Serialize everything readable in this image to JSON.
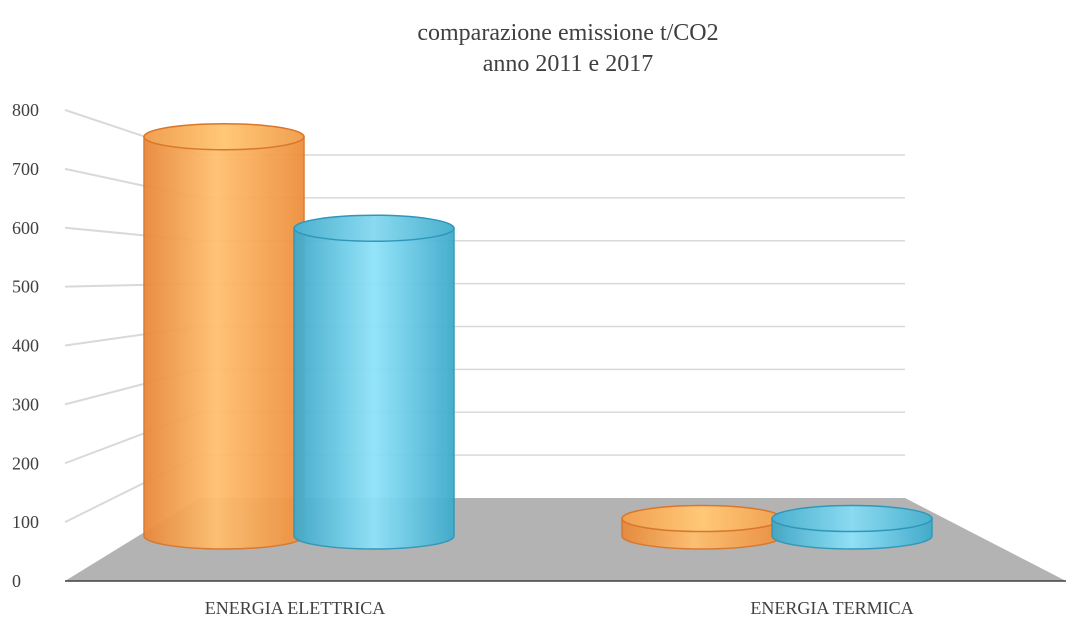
{
  "chart_data": {
    "type": "bar",
    "title": "comparazione emissione t/CO2",
    "subtitle": "anno 2011 e 2017",
    "categories": [
      "ENERGIA ELETTRICA",
      "ENERGIA TERMICA"
    ],
    "series": [
      {
        "values": [
          685,
          30
        ],
        "color": "#F4A24A"
      },
      {
        "values": [
          528,
          30
        ],
        "color": "#4BB8D9"
      }
    ],
    "ylim": [
      0,
      800
    ],
    "yticks": [
      0,
      100,
      200,
      300,
      400,
      500,
      600,
      700,
      800
    ],
    "grid": true,
    "floor_color": "#B3B3B3"
  }
}
